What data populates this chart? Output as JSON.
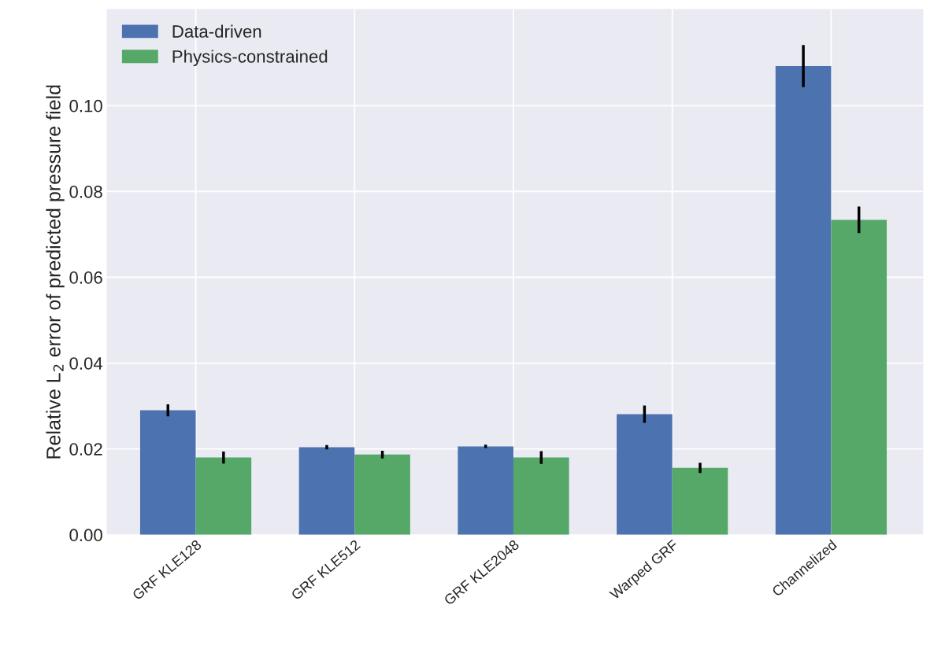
{
  "chart_data": {
    "type": "bar",
    "ylabel": "Relative L$_{2}$ error of predicted pressure field",
    "categories": [
      "GRF KLE128",
      "GRF KLE512",
      "GRF KLE2048",
      "Warped GRF",
      "Channelized"
    ],
    "series": [
      {
        "name": "Data-driven",
        "color": "#4c72b0",
        "values": [
          0.029,
          0.0204,
          0.0206,
          0.0281,
          0.1092
        ],
        "errors": [
          0.0014,
          0.0005,
          0.0004,
          0.002,
          0.0049
        ]
      },
      {
        "name": "Physics-constrained",
        "color": "#55a868",
        "values": [
          0.018,
          0.0187,
          0.018,
          0.0156,
          0.0734
        ],
        "errors": [
          0.0014,
          0.0009,
          0.0015,
          0.0012,
          0.0031
        ]
      }
    ],
    "ylim": [
      0,
      0.1225
    ],
    "yticks": [
      {
        "value": 0,
        "label": "0.00"
      },
      {
        "value": 0.02,
        "label": "0.02"
      },
      {
        "value": 0.04,
        "label": "0.04"
      },
      {
        "value": 0.06,
        "label": "0.06"
      },
      {
        "value": 0.08,
        "label": "0.08"
      },
      {
        "value": 0.1,
        "label": "0.10"
      }
    ],
    "grid": true,
    "legend": "top left"
  }
}
